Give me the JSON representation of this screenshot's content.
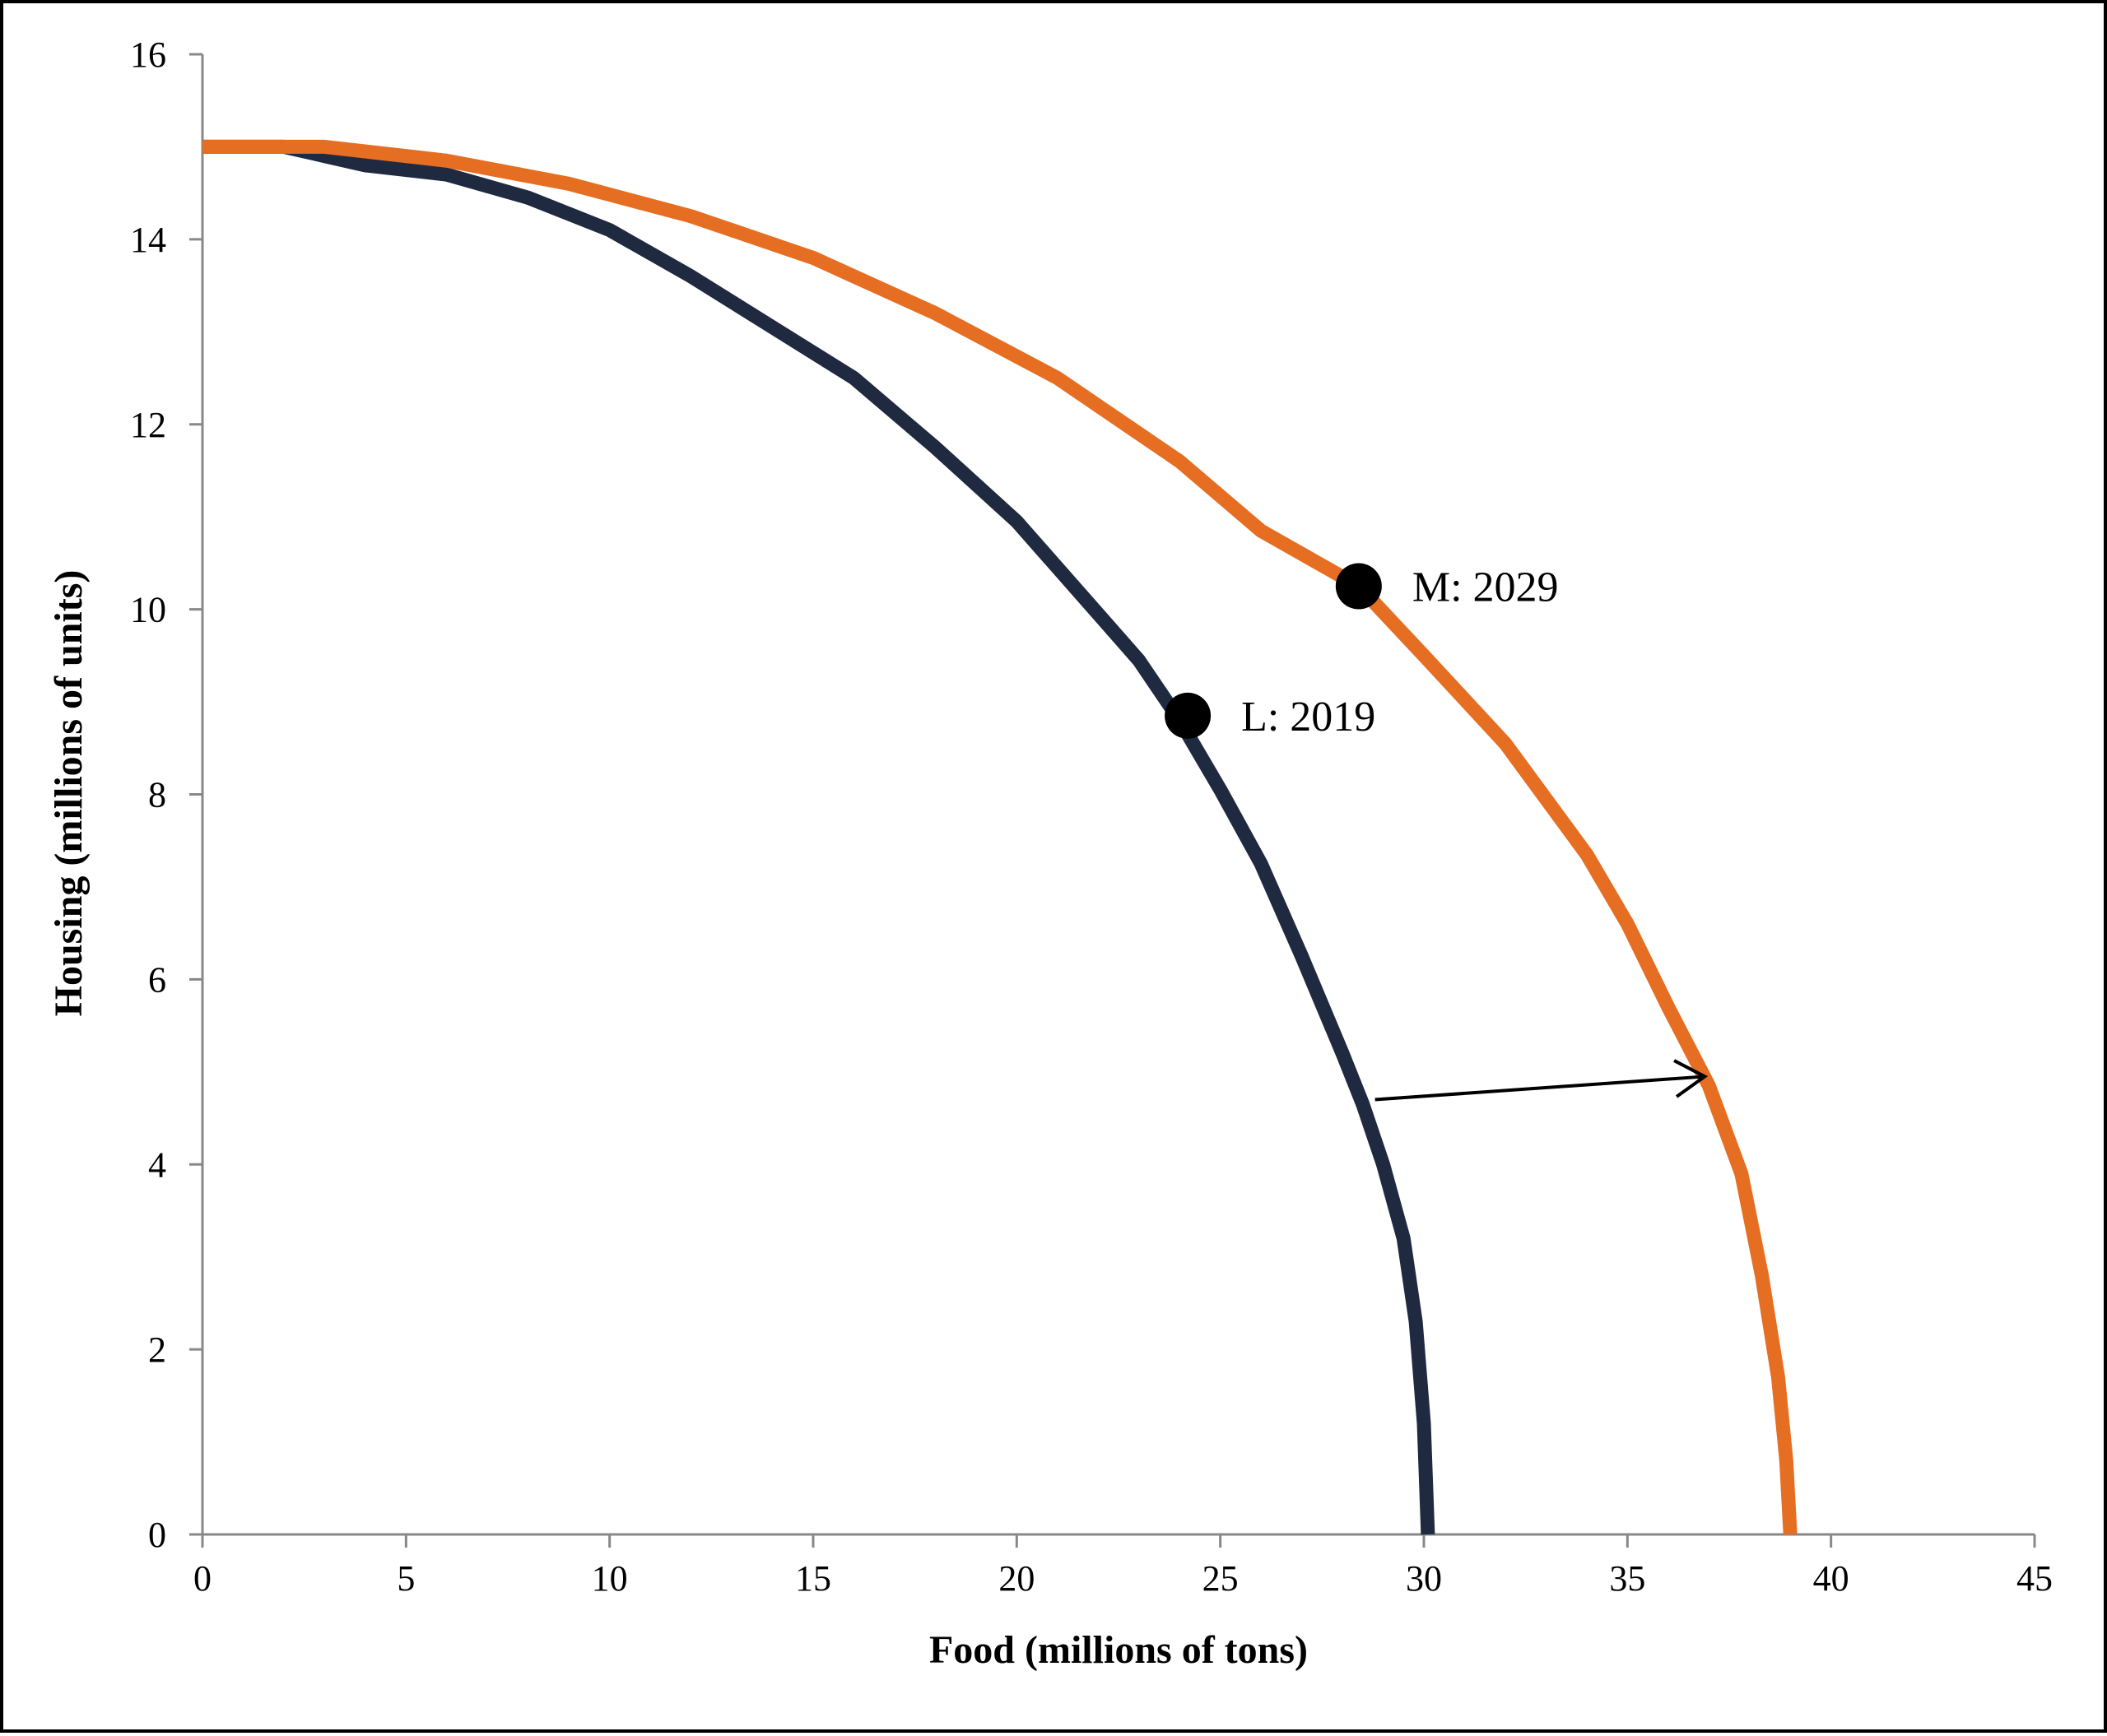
{
  "chart_data": {
    "type": "line",
    "title": "",
    "xlabel": "Food (millions of tons)",
    "ylabel": "Housing (millions of units)",
    "xlim": [
      0,
      45
    ],
    "ylim": [
      0,
      16
    ],
    "x_ticks": [
      0,
      5,
      10,
      15,
      20,
      25,
      30,
      35,
      40,
      45
    ],
    "y_ticks": [
      0,
      2,
      4,
      6,
      8,
      10,
      12,
      14,
      16
    ],
    "grid": false,
    "legend": "none",
    "series": [
      {
        "color": "#1f2a40",
        "x": [
          0,
          2,
          4,
          6,
          8,
          10,
          12,
          14,
          16,
          18,
          20,
          22,
          23,
          24,
          25,
          26,
          27,
          28,
          28.5,
          29,
          29.5,
          29.8,
          30,
          30.1
        ],
        "y": [
          15,
          15,
          14.8,
          14.7,
          14.45,
          14.1,
          13.6,
          13.05,
          12.5,
          11.75,
          10.95,
          9.95,
          9.45,
          8.8,
          8.05,
          7.25,
          6.25,
          5.2,
          4.65,
          4,
          3.2,
          2.3,
          1.2,
          0
        ]
      },
      {
        "color": "#e66e22",
        "x": [
          0,
          3,
          6,
          9,
          12,
          15,
          18,
          21,
          24,
          26,
          28.4,
          30,
          32,
          34,
          35,
          36,
          37,
          37.8,
          38.3,
          38.7,
          38.9,
          39
        ],
        "y": [
          15,
          15,
          14.85,
          14.6,
          14.25,
          13.8,
          13.2,
          12.5,
          11.6,
          10.85,
          10.25,
          9.5,
          8.55,
          7.35,
          6.6,
          5.7,
          4.85,
          3.9,
          2.8,
          1.7,
          0.8,
          0
        ]
      }
    ],
    "points": [
      {
        "label": "L: 2019",
        "x": 24.2,
        "y": 8.85
      },
      {
        "label": "M: 2029",
        "x": 28.4,
        "y": 10.25
      }
    ],
    "arrow": {
      "from": {
        "x": 28.8,
        "y": 4.7
      },
      "to": {
        "x": 36.9,
        "y": 4.95
      }
    }
  }
}
